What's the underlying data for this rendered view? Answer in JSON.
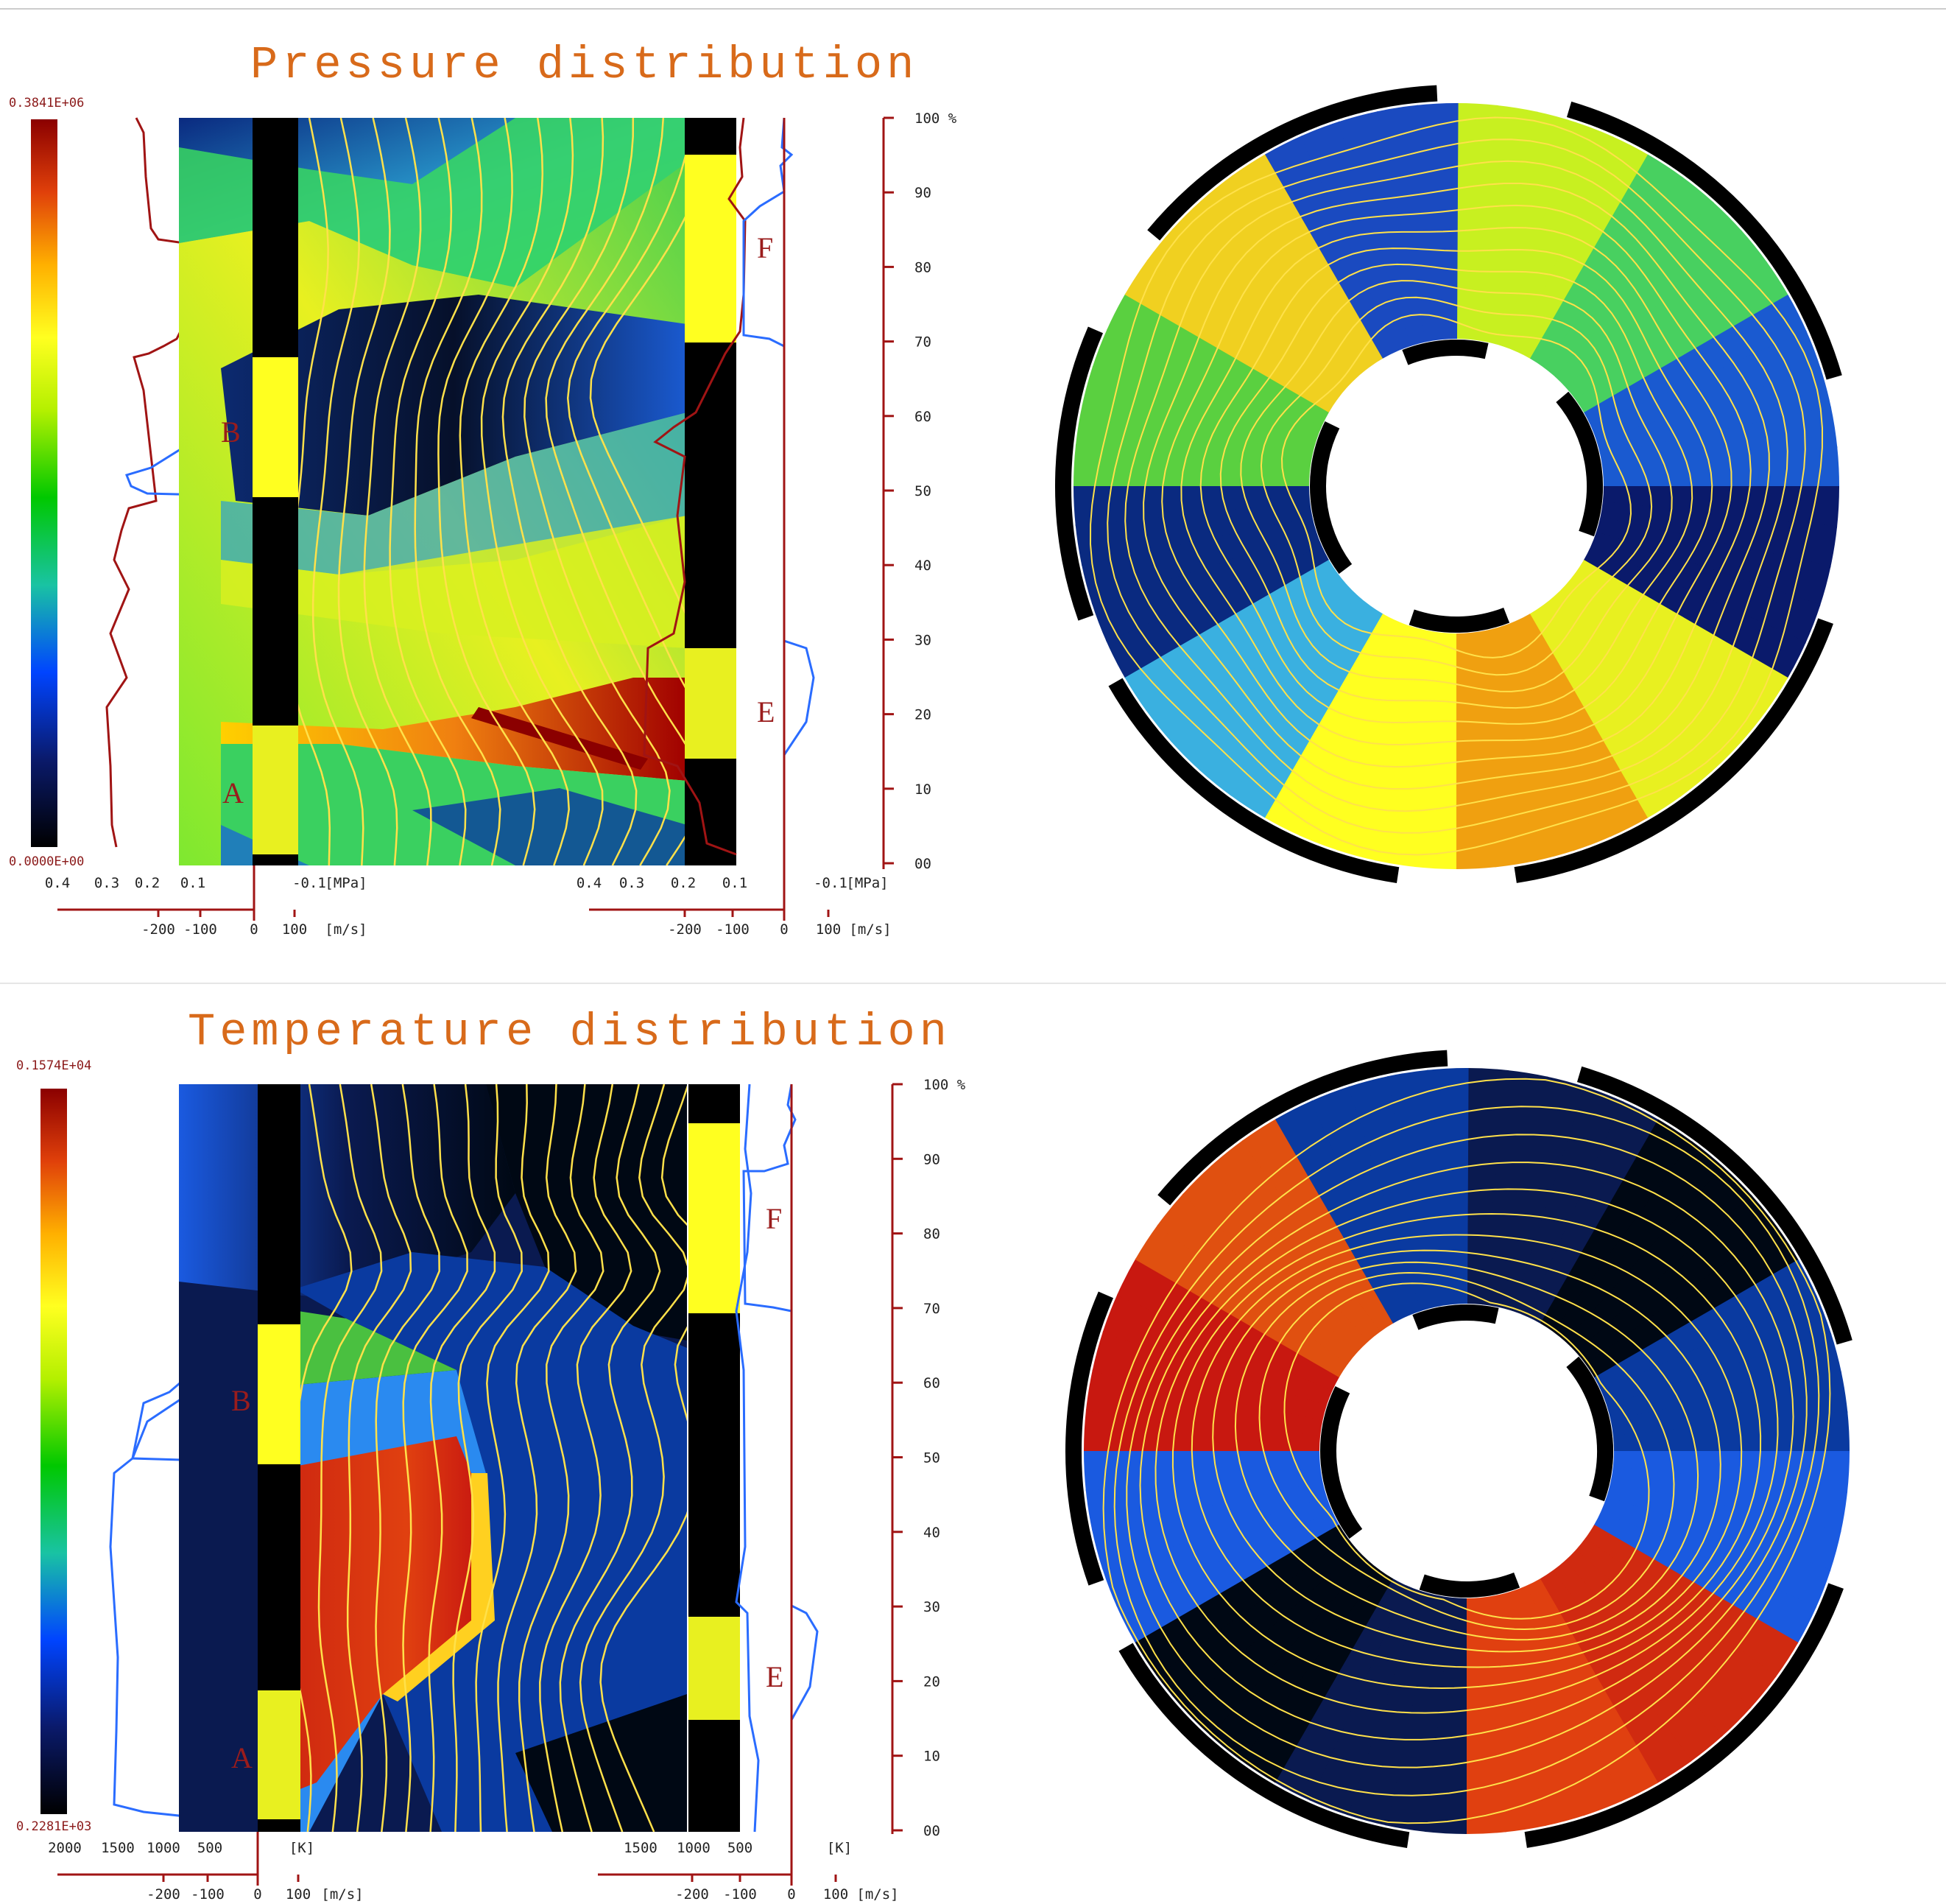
{
  "colors": {
    "axis_red": "#a01414",
    "velocity_blue": "#2a6cff",
    "contour_yellow": "#ffe14a",
    "title_orange": "#d86a1a",
    "annulus_black": "#000000"
  },
  "colormap_stops": [
    "#000000",
    "#0a1a6b",
    "#0044ff",
    "#19c3a3",
    "#00c800",
    "#b4f000",
    "#ffff20",
    "#ffb000",
    "#e0400a",
    "#8b0000"
  ],
  "panels": [
    {
      "id": "pressure",
      "title": "Pressure distribution",
      "colorbar": {
        "max_label": "0.3841E+06",
        "min_label": "0.0000E+00"
      },
      "left_profile": {
        "scalar_ticks": [
          "0.4",
          "0.3",
          "0.2",
          "0.1",
          "-0.1"
        ],
        "scalar_unit": "[MPa]",
        "velocity_ticks": [
          "-200",
          "-100",
          "0",
          "100"
        ],
        "velocity_unit": "[m/s]"
      },
      "right_profile": {
        "scalar_ticks": [
          "0.4",
          "0.3",
          "0.2",
          "0.1",
          "-0.1"
        ],
        "scalar_unit": "[MPa]",
        "velocity_ticks": [
          "-200",
          "-100",
          "0",
          "100"
        ],
        "velocity_unit": "[m/s]"
      },
      "percent_axis": [
        "00",
        "10",
        "20",
        "30",
        "40",
        "50",
        "60",
        "70",
        "80",
        "90",
        "100 %"
      ],
      "zones": [
        "A",
        "B",
        "E",
        "F"
      ]
    },
    {
      "id": "temperature",
      "title": "Temperature distribution",
      "colorbar": {
        "max_label": "0.1574E+04",
        "min_label": "0.2281E+03"
      },
      "left_profile": {
        "scalar_ticks": [
          "2000",
          "1500",
          "1000",
          "500"
        ],
        "scalar_unit": "[K]",
        "velocity_ticks": [
          "-200",
          "-100",
          "0",
          "100"
        ],
        "velocity_unit": "[m/s]"
      },
      "right_profile": {
        "scalar_ticks": [
          "1500",
          "1000",
          "500"
        ],
        "scalar_unit": "[K]",
        "velocity_ticks": [
          "-200",
          "-100",
          "0",
          "100"
        ],
        "velocity_unit": "[m/s]"
      },
      "percent_axis": [
        "00",
        "10",
        "20",
        "30",
        "40",
        "50",
        "60",
        "70",
        "80",
        "90",
        "100 %"
      ],
      "zones": [
        "A",
        "B",
        "E",
        "F"
      ]
    }
  ]
}
